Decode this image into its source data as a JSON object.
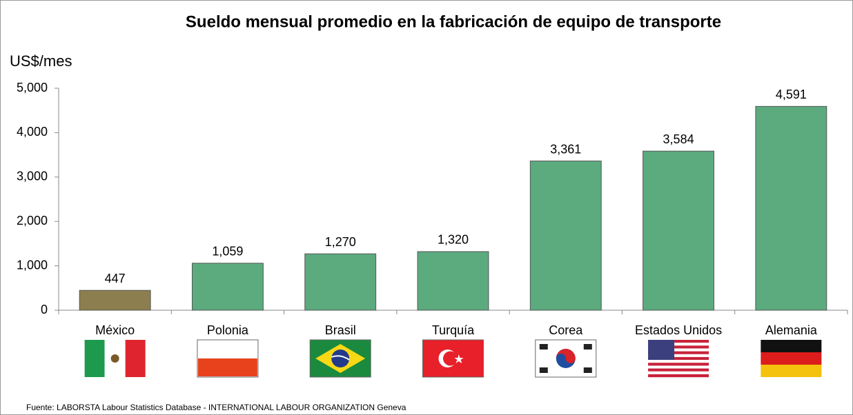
{
  "chart_data": {
    "type": "bar",
    "title": "Sueldo mensual promedio en la fabricación de equipo de transporte",
    "y_label": "US$/mes",
    "source": "Fuente: LABORSTA Labour Statistics Database - INTERNATIONAL LABOUR ORGANIZATION Geneva",
    "categories": [
      "México",
      "Polonia",
      "Brasil",
      "Turquía",
      "Corea",
      "Estados Unidos",
      "Alemania"
    ],
    "values": [
      447,
      1059,
      1270,
      1320,
      3361,
      3584,
      4591
    ],
    "value_labels": [
      "447",
      "1,059",
      "1,270",
      "1,320",
      "3,361",
      "3,584",
      "4,591"
    ],
    "colors": [
      "#8c7e4e",
      "#5bab7f",
      "#5bab7f",
      "#5bab7f",
      "#5bab7f",
      "#5bab7f",
      "#5bab7f"
    ],
    "ylim": [
      0,
      5000
    ],
    "yticks": [
      0,
      {
        "value": 1000,
        "label": "1,000"
      },
      {
        "value": 2000,
        "label": "2,000"
      },
      {
        "value": 3000,
        "label": "3,000"
      },
      {
        "value": 4000,
        "label": "4,000"
      },
      {
        "value": 5000,
        "label": "5,000"
      }
    ],
    "grid": false
  }
}
